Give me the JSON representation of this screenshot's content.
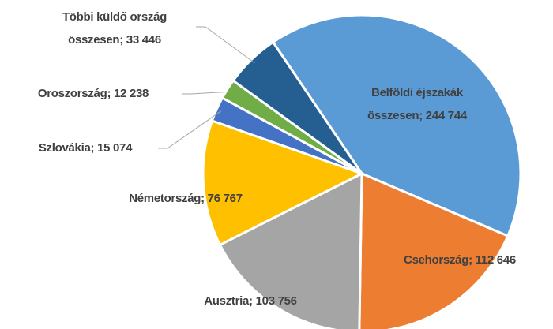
{
  "chart_data": {
    "type": "pie",
    "values": [
      244744,
      112646,
      103756,
      76767,
      15074,
      12238,
      33446
    ],
    "value_labels": [
      [
        "Belföldi éjszakák",
        "összesen; 244 744"
      ],
      [
        "Csehország; 112 646"
      ],
      [
        "Ausztria; 103 756"
      ],
      [
        "Németország; 76 767"
      ],
      [
        "Szlovákia; 15 074"
      ],
      [
        "Oroszország; 12 238"
      ],
      [
        "Többi küldő ország",
        "összesen; 33 446"
      ]
    ],
    "colors": [
      "#5b9bd5",
      "#ed7d31",
      "#a5a5a5",
      "#ffc000",
      "#4472c4",
      "#70ad47",
      "#255e91"
    ]
  }
}
